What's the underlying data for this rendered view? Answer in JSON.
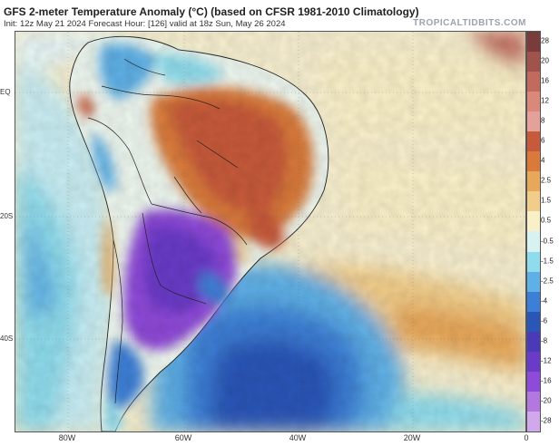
{
  "header": {
    "title": "GFS 2-meter Temperature Anomaly (°C) (based on CFSR 1981-2010 Climatology)",
    "subtitle": "Init: 12z May 21 2024   Forecast Hour: [126]   valid at 18z Sun, May 26 2024",
    "brand": "TROPICALTIDBITS.COM"
  },
  "map": {
    "lat_labels": [
      "EQ",
      "20S",
      "40S"
    ],
    "lon_labels": [
      "80W",
      "60W",
      "40W",
      "20W",
      "0"
    ]
  },
  "colorbar": {
    "labels": [
      "28",
      "20",
      "16",
      "12",
      "8",
      "6",
      "4",
      "2.5",
      "1.5",
      "0.5",
      "-0.5",
      "-1.5",
      "-2.5",
      "-4",
      "-6",
      "-8",
      "-12",
      "-16",
      "-20",
      "-28"
    ],
    "colors": [
      "#7a3b3b",
      "#a0524d",
      "#c26a5e",
      "#d9887a",
      "#e3a19a",
      "#c75a3a",
      "#d97a3a",
      "#e8a85a",
      "#f2cd8a",
      "#faf0c8",
      "#d8f2f2",
      "#8fdcec",
      "#5fb0e6",
      "#3d7fd6",
      "#2a56b8",
      "#4a3ab8",
      "#6a3ac8",
      "#8e4ad8",
      "#b278e0",
      "#d2a8ec"
    ]
  }
}
